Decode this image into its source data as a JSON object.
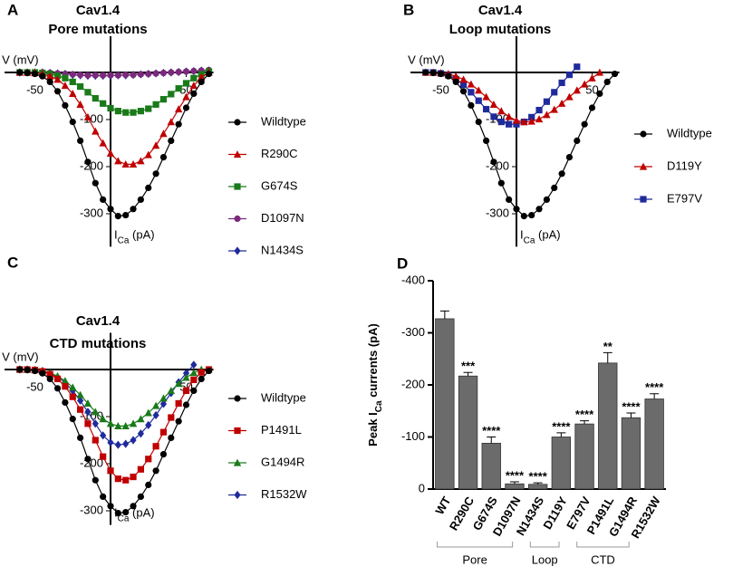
{
  "chart_data": [
    {
      "type": "line",
      "label": "A",
      "title": [
        "Cav1.4",
        "Pore mutations"
      ],
      "xlabel": "V (mV)",
      "ylabel": [
        "I",
        "Ca",
        " (pA)"
      ],
      "x": [
        -60,
        -55,
        -50,
        -45,
        -40,
        -35,
        -30,
        -25,
        -20,
        -15,
        -10,
        -5,
        0,
        5,
        10,
        15,
        20,
        25,
        30,
        35,
        40,
        45,
        50,
        55,
        60,
        65
      ],
      "xlim": [
        -70,
        68
      ],
      "ylim": [
        -370,
        77
      ],
      "xticks": [
        -50,
        50
      ],
      "yticks": [
        -300,
        -200,
        -100
      ],
      "legend": "right",
      "series": [
        {
          "name": "Wildtype",
          "color": "#000000",
          "marker": "circle",
          "values": [
            0,
            -1,
            -3,
            -8,
            -20,
            -40,
            -70,
            -105,
            -145,
            -190,
            -235,
            -270,
            -290,
            -305,
            -303,
            -290,
            -270,
            -245,
            -215,
            -180,
            -145,
            -110,
            -75,
            -45,
            -20,
            -3
          ]
        },
        {
          "name": "R290C",
          "color": "#c00000",
          "marker": "triangle",
          "values": [
            0,
            0,
            -1,
            -3,
            -8,
            -15,
            -28,
            -45,
            -68,
            -95,
            -125,
            -150,
            -172,
            -188,
            -195,
            -195,
            -188,
            -175,
            -155,
            -130,
            -105,
            -78,
            -52,
            -28,
            -10,
            0
          ]
        },
        {
          "name": "G674S",
          "color": "#1a7a1a",
          "marker": "square",
          "values": [
            0,
            0,
            0,
            -1,
            -3,
            -7,
            -12,
            -20,
            -30,
            -42,
            -55,
            -66,
            -76,
            -82,
            -85,
            -85,
            -82,
            -77,
            -68,
            -57,
            -46,
            -34,
            -23,
            -12,
            -4,
            2
          ]
        },
        {
          "name": "D1097N",
          "color": "#7b2a7b",
          "marker": "circle",
          "values": [
            0,
            0,
            0,
            0,
            -1,
            -2,
            -3,
            -4,
            -5,
            -6,
            -6,
            -6,
            -6,
            -6,
            -5,
            -5,
            -4,
            -3,
            -2,
            -1,
            0,
            1,
            2,
            3,
            4,
            5
          ]
        },
        {
          "name": "N1434S",
          "color": "#1f2a9c",
          "marker": "diamond",
          "values": [
            0,
            0,
            0,
            0,
            -1,
            -2,
            -3,
            -5,
            -6,
            -7,
            -7,
            -7,
            -7,
            -6,
            -6,
            -5,
            -4,
            -3,
            -2,
            -1,
            0,
            1,
            2,
            3,
            4,
            4
          ]
        }
      ]
    },
    {
      "type": "line",
      "label": "B",
      "title": [
        "Cav1.4",
        "Loop mutations"
      ],
      "xlabel": "V (mV)",
      "ylabel": [
        "I",
        "Ca",
        " (pA)"
      ],
      "x": [
        -60,
        -55,
        -50,
        -45,
        -40,
        -35,
        -30,
        -25,
        -20,
        -15,
        -10,
        -5,
        0,
        5,
        10,
        15,
        20,
        25,
        30,
        35,
        40,
        45,
        50,
        55,
        60,
        65
      ],
      "xlim": [
        -70,
        68
      ],
      "ylim": [
        -370,
        77
      ],
      "xticks": [
        -50,
        50
      ],
      "yticks": [
        -300,
        -200,
        -100
      ],
      "legend": "right",
      "series": [
        {
          "name": "Wildtype",
          "color": "#000000",
          "marker": "circle",
          "values": [
            0,
            -1,
            -3,
            -8,
            -20,
            -40,
            -70,
            -105,
            -145,
            -190,
            -235,
            -270,
            -290,
            -305,
            -303,
            -290,
            -270,
            -245,
            -215,
            -180,
            -145,
            -110,
            -75,
            -45,
            -20,
            -3
          ]
        },
        {
          "name": "D119Y",
          "color": "#c00000",
          "marker": "triangle",
          "values": [
            0,
            0,
            -1,
            -3,
            -8,
            -15,
            -25,
            -38,
            -52,
            -68,
            -82,
            -94,
            -102,
            -105,
            -104,
            -99,
            -90,
            -79,
            -66,
            -52,
            -38,
            -25,
            -12,
            0,
            null,
            null
          ]
        },
        {
          "name": "E797V",
          "color": "#1f2a9c",
          "marker": "square",
          "values": [
            0,
            0,
            -2,
            -6,
            -14,
            -26,
            -42,
            -60,
            -78,
            -94,
            -105,
            -110,
            -110,
            -105,
            -95,
            -80,
            -62,
            -42,
            -22,
            -5,
            12,
            null,
            null,
            null,
            null,
            null
          ]
        }
      ]
    },
    {
      "type": "line",
      "label": "C",
      "title": [
        "Cav1.4",
        "CTD mutations"
      ],
      "xlabel": "V (mV)",
      "ylabel": [
        "I",
        "Ca",
        " (pA)"
      ],
      "x": [
        -60,
        -55,
        -50,
        -45,
        -40,
        -35,
        -30,
        -25,
        -20,
        -15,
        -10,
        -5,
        0,
        5,
        10,
        15,
        20,
        25,
        30,
        35,
        40,
        45,
        50,
        55,
        60,
        65
      ],
      "xlim": [
        -70,
        68
      ],
      "ylim": [
        -330,
        78
      ],
      "xticks": [
        -50,
        50
      ],
      "yticks": [
        -300,
        -200,
        -100
      ],
      "legend": "right",
      "series": [
        {
          "name": "Wildtype",
          "color": "#000000",
          "marker": "circle",
          "values": [
            0,
            -1,
            -3,
            -8,
            -20,
            -40,
            -70,
            -105,
            -145,
            -190,
            -235,
            -270,
            -290,
            -305,
            -303,
            -290,
            -270,
            -245,
            -215,
            -180,
            -145,
            -110,
            -75,
            -45,
            -20,
            -3
          ]
        },
        {
          "name": "P1491L",
          "color": "#c00000",
          "marker": "square",
          "values": [
            0,
            0,
            -1,
            -4,
            -10,
            -20,
            -36,
            -58,
            -85,
            -115,
            -150,
            -185,
            -215,
            -232,
            -235,
            -228,
            -212,
            -190,
            -163,
            -133,
            -102,
            -72,
            -45,
            -22,
            -6,
            0
          ]
        },
        {
          "name": "G1494R",
          "color": "#1a7a1a",
          "marker": "triangle",
          "values": [
            0,
            0,
            -1,
            -3,
            -7,
            -14,
            -24,
            -38,
            -54,
            -72,
            -90,
            -105,
            -115,
            -120,
            -120,
            -115,
            -105,
            -92,
            -77,
            -61,
            -45,
            -30,
            -17,
            -7,
            0,
            null
          ]
        },
        {
          "name": "R1532W",
          "color": "#1f2a9c",
          "marker": "diamond",
          "values": [
            0,
            0,
            -1,
            -3,
            -8,
            -16,
            -28,
            -45,
            -66,
            -90,
            -115,
            -140,
            -155,
            -160,
            -158,
            -150,
            -136,
            -118,
            -97,
            -73,
            -50,
            -27,
            -8,
            10,
            null,
            null
          ]
        }
      ]
    },
    {
      "type": "bar",
      "label": "D",
      "ylabel": [
        "Peak I",
        "Ca",
        " currents (pA)"
      ],
      "categories": [
        "WT",
        "R290C",
        "G674S",
        "D1097N",
        "N1434S",
        "D119Y",
        "E797V",
        "P1491L",
        "G1494R",
        "R1532W"
      ],
      "values": [
        -327,
        -217,
        -88,
        -10,
        -9,
        -100,
        -125,
        -242,
        -137,
        -173
      ],
      "errors": [
        15,
        7,
        12,
        4,
        3,
        8,
        6,
        20,
        9,
        10
      ],
      "color": "#6b6b6b",
      "ylim": [
        0,
        -400
      ],
      "yticks": [
        0,
        -100,
        -200,
        -300,
        -400
      ],
      "annotations": [
        {
          "category": "R290C",
          "label": "***"
        },
        {
          "category": "G674S",
          "label": "****"
        },
        {
          "category": "D1097N",
          "label": "****"
        },
        {
          "category": "N1434S",
          "label": "****"
        },
        {
          "category": "D119Y",
          "label": "****"
        },
        {
          "category": "E797V",
          "label": "****"
        },
        {
          "category": "P1491L",
          "label": "**"
        },
        {
          "category": "G1494R",
          "label": "****"
        },
        {
          "category": "R1532W",
          "label": "****"
        }
      ],
      "groups": [
        {
          "label": "Pore",
          "from": "R290C",
          "to": "N1434S"
        },
        {
          "label": "Loop",
          "from": "D119Y",
          "to": "E797V"
        },
        {
          "label": "CTD",
          "from": "P1491L",
          "to": "R1532W"
        }
      ]
    }
  ]
}
